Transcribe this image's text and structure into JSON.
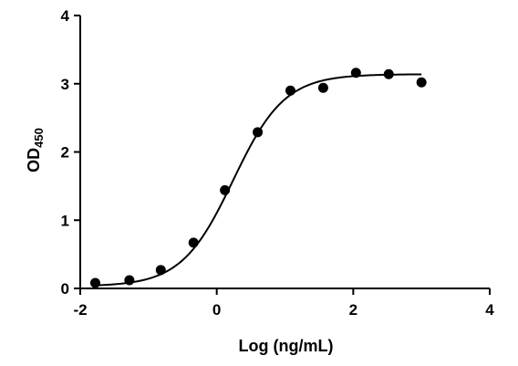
{
  "chart_data": {
    "type": "scatter",
    "xlabel": "Log (ng/mL)",
    "ylabel": {
      "main": "OD",
      "subscript": "450"
    },
    "xlim": [
      -2,
      4
    ],
    "ylim": [
      0,
      4
    ],
    "x_ticks": [
      -2,
      0,
      2,
      4
    ],
    "y_ticks": [
      0,
      1,
      2,
      3,
      4
    ],
    "grid": false,
    "series": [
      {
        "marker": "filled-circle",
        "color": "#000000",
        "points": [
          {
            "x": -1.78,
            "y": 0.08
          },
          {
            "x": -1.28,
            "y": 0.12
          },
          {
            "x": -0.82,
            "y": 0.27
          },
          {
            "x": -0.34,
            "y": 0.67
          },
          {
            "x": 0.12,
            "y": 1.44
          },
          {
            "x": 0.6,
            "y": 2.29
          },
          {
            "x": 1.08,
            "y": 2.9
          },
          {
            "x": 1.56,
            "y": 2.94
          },
          {
            "x": 2.04,
            "y": 3.16
          },
          {
            "x": 2.52,
            "y": 3.14
          },
          {
            "x": 3.0,
            "y": 3.02
          }
        ]
      }
    ],
    "fit_curve": {
      "model": "4PL",
      "bottom": 0.03,
      "top": 3.14,
      "log_ec50": 0.24,
      "hill_slope": 1.15,
      "x_range": [
        -1.78,
        3.0
      ],
      "color": "#000000"
    }
  }
}
